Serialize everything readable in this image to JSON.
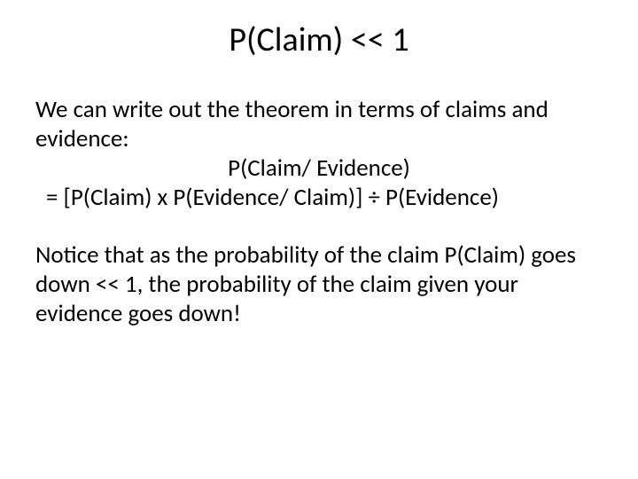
{
  "title": "P(Claim) << 1",
  "para1": "We can write out the theorem in terms of claims and evidence:",
  "formula_line1": "P(Claim/ Evidence)",
  "formula_line2": "= [P(Claim) x P(Evidence/ Claim)] ÷ P(Evidence)",
  "para2": "Notice that as the probability of the claim P(Claim) goes down << 1, the probability of the claim given your evidence goes down!",
  "colors": {
    "background": "#ffffff",
    "text": "#000000"
  },
  "fonts": {
    "title_size": 38,
    "body_size": 27,
    "family": "Calibri"
  }
}
